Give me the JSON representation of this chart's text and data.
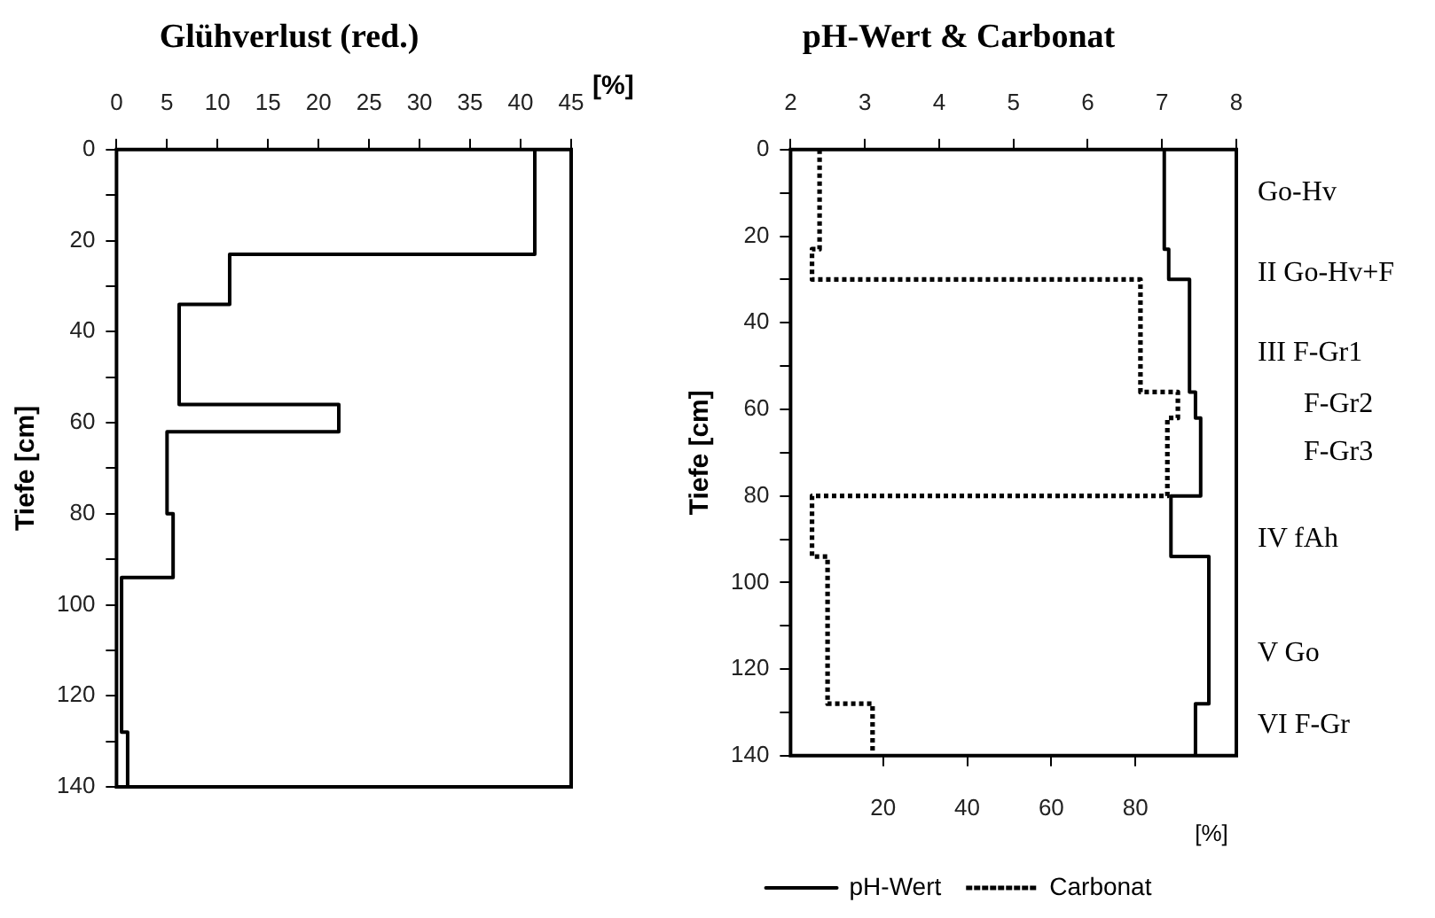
{
  "chart_data": [
    {
      "type": "line",
      "title": "Glühverlust (red.)",
      "ylabel": "Tiefe [cm]",
      "xlabel": "[%]",
      "xlim": [
        0,
        45
      ],
      "xticks": [
        0,
        5,
        10,
        15,
        20,
        25,
        30,
        35,
        40,
        45
      ],
      "ylim": [
        140,
        0
      ],
      "yticks": [
        0,
        {
          "value": 10,
          "label": null
        },
        20,
        {
          "value": 30,
          "label": null
        },
        40,
        {
          "value": 50,
          "label": null
        },
        60,
        {
          "value": 70,
          "label": null
        },
        80,
        {
          "value": 90,
          "label": null
        },
        100,
        {
          "value": 110,
          "label": null
        },
        120,
        {
          "value": 130,
          "label": null
        },
        140
      ],
      "grid": false,
      "legend": false,
      "series": [
        {
          "color": "#000000",
          "line_style": "solid",
          "x": [
            41.4,
            41.4,
            11.2,
            11.2,
            6.2,
            6.2,
            22.0,
            22.0,
            5.0,
            5.0,
            5.6,
            5.6,
            0.5,
            0.5,
            1.1,
            1.1
          ],
          "values": [
            0,
            23,
            23,
            34,
            34,
            56,
            56,
            62,
            62,
            80,
            80,
            94,
            94,
            128,
            128,
            140
          ]
        }
      ]
    },
    {
      "type": "line",
      "title": "pH-Wert & Carbonat",
      "ylabel": "Tiefe [cm]",
      "xlabel": "[%]",
      "xlim": [
        -2,
        104
      ],
      "xticks": [
        20,
        40,
        60,
        80
      ],
      "x2lim": [
        2,
        8
      ],
      "x2ticks": [
        2,
        3,
        4,
        5,
        6,
        7,
        8
      ],
      "ylim": [
        140,
        0
      ],
      "yticks": [
        0,
        {
          "value": 10,
          "label": null
        },
        20,
        {
          "value": 30,
          "label": null
        },
        40,
        {
          "value": 50,
          "label": null
        },
        60,
        {
          "value": 70,
          "label": null
        },
        80,
        {
          "value": 90,
          "label": null
        },
        100,
        {
          "value": 110,
          "label": null
        },
        120,
        {
          "value": 130,
          "label": null
        },
        140
      ],
      "grid": false,
      "legend": "bottom",
      "series": [
        {
          "name": "pH-Wert",
          "color": "#000000",
          "axis": "x2",
          "line_style": "solid",
          "x": [
            7.03,
            7.03,
            7.09,
            7.09,
            7.37,
            7.37,
            7.45,
            7.45,
            7.52,
            7.52,
            7.12,
            7.12,
            7.63,
            7.63,
            7.45,
            7.45
          ],
          "values": [
            0,
            23,
            23,
            30,
            30,
            56,
            56,
            62,
            62,
            80,
            80,
            94,
            94,
            128,
            128,
            140
          ]
        },
        {
          "name": "Carbonat",
          "color": "#000000",
          "line_style": "dotted",
          "x": [
            4.9,
            4.9,
            3.1,
            3.1,
            81.2,
            81.2,
            90.1,
            90.1,
            87.6,
            87.6,
            3.1,
            3.1,
            6.8,
            6.8,
            17.5,
            17.5
          ],
          "values": [
            0,
            23,
            23,
            30,
            30,
            56,
            56,
            62,
            62,
            80,
            80,
            94,
            94,
            128,
            128,
            140
          ]
        }
      ],
      "annotations": [
        "Go-Hv",
        "II Go-Hv+F",
        "III F-Gr1",
        "F-Gr2",
        "F-Gr3",
        "IV fAh",
        "V Go",
        "VI F-Gr"
      ]
    }
  ]
}
